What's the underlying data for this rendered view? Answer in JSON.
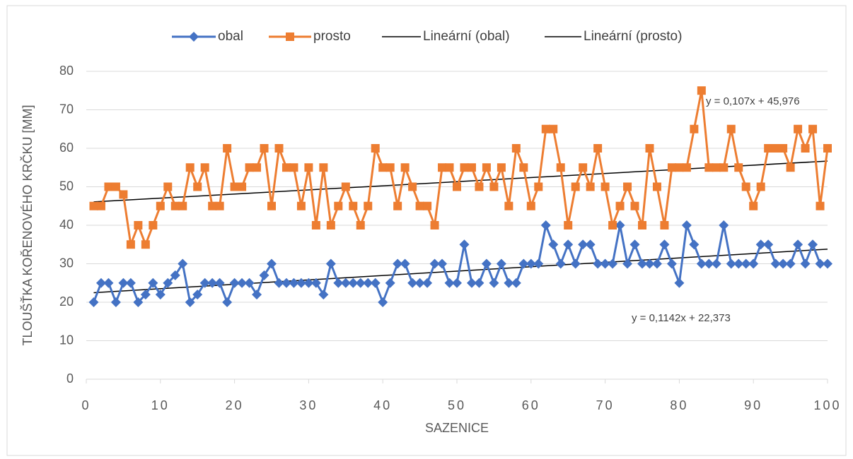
{
  "chart_data": {
    "type": "line",
    "ylabel": "TLOUŠŤKA KOŘENOVÉHO KRČKU [MM]",
    "xlabel": "SAZENICE",
    "x": [
      1,
      2,
      3,
      4,
      5,
      6,
      7,
      8,
      9,
      10,
      11,
      12,
      13,
      14,
      15,
      16,
      17,
      18,
      19,
      20,
      21,
      22,
      23,
      24,
      25,
      26,
      27,
      28,
      29,
      30,
      31,
      32,
      33,
      34,
      35,
      36,
      37,
      38,
      39,
      40,
      41,
      42,
      43,
      44,
      45,
      46,
      47,
      48,
      49,
      50,
      51,
      52,
      53,
      54,
      55,
      56,
      57,
      58,
      59,
      60,
      61,
      62,
      63,
      64,
      65,
      66,
      67,
      68,
      69,
      70,
      71,
      72,
      73,
      74,
      75,
      76,
      77,
      78,
      79,
      80,
      81,
      82,
      83,
      84,
      85,
      86,
      87,
      88,
      89,
      90,
      91,
      92,
      93,
      94,
      95,
      96,
      97,
      98,
      99,
      100
    ],
    "series": [
      {
        "name": "obal",
        "color": "#4472c4",
        "marker": "diamond",
        "values": [
          20,
          25,
          25,
          20,
          25,
          25,
          20,
          22,
          25,
          22,
          25,
          27,
          30,
          20,
          22,
          25,
          25,
          25,
          20,
          25,
          25,
          25,
          22,
          27,
          30,
          25,
          25,
          25,
          25,
          25,
          25,
          22,
          30,
          25,
          25,
          25,
          25,
          25,
          25,
          20,
          25,
          30,
          30,
          25,
          25,
          25,
          30,
          30,
          25,
          25,
          35,
          25,
          25,
          30,
          25,
          30,
          25,
          25,
          30,
          30,
          30,
          40,
          35,
          30,
          35,
          30,
          35,
          35,
          30,
          30,
          30,
          40,
          30,
          35,
          30,
          30,
          30,
          35,
          30,
          25,
          40,
          35,
          30,
          30,
          30,
          40,
          30,
          30,
          30,
          30,
          35,
          35,
          30,
          30,
          30,
          35,
          30,
          35,
          30,
          30
        ]
      },
      {
        "name": "prosto",
        "color": "#ed7d31",
        "marker": "square",
        "values": [
          45,
          45,
          50,
          50,
          48,
          35,
          40,
          35,
          40,
          45,
          50,
          45,
          45,
          55,
          50,
          55,
          45,
          45,
          60,
          50,
          50,
          55,
          55,
          60,
          45,
          60,
          55,
          55,
          45,
          55,
          40,
          55,
          40,
          45,
          50,
          45,
          40,
          45,
          60,
          55,
          55,
          45,
          55,
          50,
          45,
          45,
          40,
          55,
          55,
          50,
          55,
          55,
          50,
          55,
          50,
          55,
          45,
          60,
          55,
          45,
          50,
          65,
          65,
          55,
          40,
          50,
          55,
          50,
          60,
          50,
          40,
          45,
          50,
          45,
          40,
          60,
          50,
          40,
          55,
          55,
          55,
          65,
          75,
          55,
          55,
          55,
          65,
          55,
          50,
          45,
          50,
          60,
          60,
          60,
          55,
          65,
          60,
          65,
          45,
          60
        ]
      }
    ],
    "trendlines": [
      {
        "name": "Lineární (obal)",
        "color": "#000000",
        "equation": "y = 0,1142x + 22,373",
        "slope": 0.1142,
        "intercept": 22.373
      },
      {
        "name": "Lineární (prosto)",
        "color": "#000000",
        "equation": "y = 0,107x + 45,976",
        "slope": 0.107,
        "intercept": 45.976
      }
    ],
    "xlim": [
      0,
      100
    ],
    "xticks": [
      0,
      10,
      20,
      30,
      40,
      50,
      60,
      70,
      80,
      90,
      100
    ],
    "ylim": [
      0,
      80
    ],
    "yticks": [
      0,
      10,
      20,
      30,
      40,
      50,
      60,
      70,
      80
    ],
    "grid": true,
    "legend": "top"
  }
}
